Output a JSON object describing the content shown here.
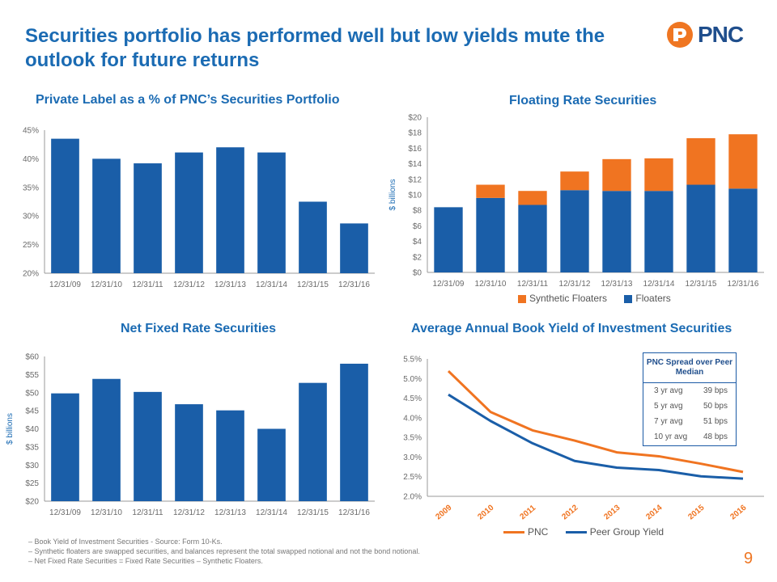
{
  "header": {
    "title": "Securities portfolio has performed well but low yields mute the outlook for future returns",
    "logo_text": "PNC"
  },
  "colors": {
    "blue": "#1a5ea8",
    "orange": "#f07421",
    "title_blue": "#1b6bb3"
  },
  "chart_data": [
    {
      "type": "bar",
      "title": "Private Label as a % of PNC’s Securities Portfolio",
      "categories": [
        "12/31/09",
        "12/31/10",
        "12/31/11",
        "12/31/12",
        "12/31/13",
        "12/31/14",
        "12/31/15",
        "12/31/16"
      ],
      "values": [
        43.5,
        40.0,
        39.2,
        41.1,
        42.0,
        41.1,
        32.5,
        28.7
      ],
      "ylim": [
        20,
        45
      ],
      "yticks": [
        "20%",
        "25%",
        "30%",
        "35%",
        "40%",
        "45%"
      ],
      "xlabel": "",
      "ylabel": ""
    },
    {
      "type": "bar",
      "stacked": true,
      "title": "Floating Rate Securities",
      "categories": [
        "12/31/09",
        "12/31/10",
        "12/31/11",
        "12/31/12",
        "12/31/13",
        "12/31/14",
        "12/31/15",
        "12/31/16"
      ],
      "series": [
        {
          "name": "Floaters",
          "values": [
            8.4,
            9.6,
            8.7,
            10.6,
            10.5,
            10.5,
            11.3,
            10.8
          ]
        },
        {
          "name": "Synthetic Floaters",
          "values": [
            0.0,
            1.7,
            1.8,
            2.4,
            4.1,
            4.2,
            6.0,
            7.0
          ]
        }
      ],
      "ylim": [
        0,
        20
      ],
      "yticks": [
        "$0",
        "$2",
        "$4",
        "$6",
        "$8",
        "$10",
        "$12",
        "$14",
        "$16",
        "$18",
        "$20"
      ],
      "ylabel": "$ billions",
      "legend": [
        "Synthetic Floaters",
        "Floaters"
      ]
    },
    {
      "type": "bar",
      "title": "Net Fixed Rate Securities",
      "categories": [
        "12/31/09",
        "12/31/10",
        "12/31/11",
        "12/31/12",
        "12/31/13",
        "12/31/14",
        "12/31/15",
        "12/31/16"
      ],
      "values": [
        49.8,
        53.8,
        50.2,
        46.8,
        45.1,
        40.0,
        52.7,
        58.0
      ],
      "ylim": [
        20,
        60
      ],
      "yticks": [
        "$20",
        "$25",
        "$30",
        "$35",
        "$40",
        "$45",
        "$50",
        "$55",
        "$60"
      ],
      "ylabel": "$ billions"
    },
    {
      "type": "line",
      "title": "Average Annual Book Yield of Investment Securities",
      "x": [
        "2009",
        "2010",
        "2011",
        "2012",
        "2013",
        "2014",
        "2015",
        "2016"
      ],
      "series": [
        {
          "name": "PNC",
          "values": [
            5.19,
            4.15,
            3.68,
            3.42,
            3.12,
            3.02,
            2.83,
            2.62
          ]
        },
        {
          "name": "Peer Group Yield",
          "values": [
            4.59,
            3.92,
            3.35,
            2.9,
            2.73,
            2.67,
            2.51,
            2.45
          ]
        }
      ],
      "ylim": [
        2.0,
        5.5
      ],
      "yticks": [
        "2.0%",
        "2.5%",
        "3.0%",
        "3.5%",
        "4.0%",
        "4.5%",
        "5.0%",
        "5.5%"
      ],
      "legend": [
        "PNC",
        "Peer Group Yield"
      ]
    }
  ],
  "spread_table": {
    "title": "PNC Spread over Peer Median",
    "rows": [
      {
        "label": "3 yr avg",
        "value": "39 bps"
      },
      {
        "label": "5 yr avg",
        "value": "50 bps"
      },
      {
        "label": "7 yr avg",
        "value": "51 bps"
      },
      {
        "label": "10 yr avg",
        "value": "48 bps"
      }
    ]
  },
  "footnotes": [
    "–  Book Yield of Investment Securities - Source: Form 10-Ks.",
    "–  Synthetic floaters are swapped securities, and balances represent the total swapped notional and not the bond notional.",
    "–  Net Fixed Rate Securities = Fixed Rate Securities – Synthetic Floaters."
  ],
  "page_number": "9"
}
